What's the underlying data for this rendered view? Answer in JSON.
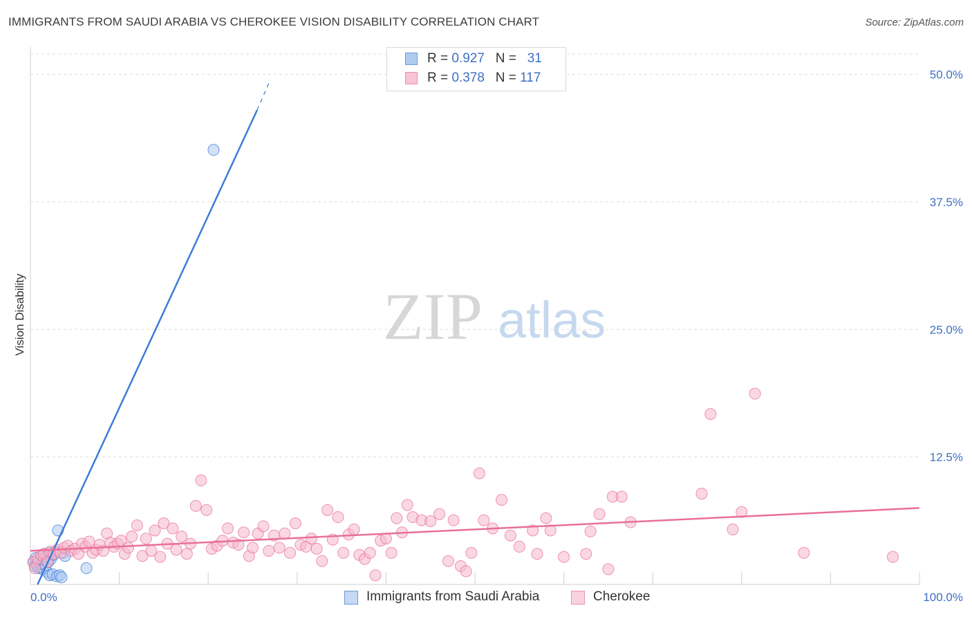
{
  "title": "IMMIGRANTS FROM SAUDI ARABIA VS CHEROKEE VISION DISABILITY CORRELATION CHART",
  "source": "Source: ZipAtlas.com",
  "watermark": {
    "zip": "ZIP",
    "atlas": "atlas"
  },
  "colors": {
    "blue": "#3d7bd6",
    "blue_fill": "#aecbf0",
    "pink": "#e8709a",
    "pink_fill": "#f6b8cb",
    "axis_text": "#3d6fc4",
    "grid": "#dddddd"
  },
  "legend": {
    "r_label": "R = ",
    "n_label": "N = ",
    "series1": {
      "r": "0.927",
      "n": "31"
    },
    "series2": {
      "r": "0.378",
      "n": "117"
    }
  },
  "chart_data": {
    "type": "scatter",
    "title": "IMMIGRANTS FROM SAUDI ARABIA VS CHEROKEE VISION DISABILITY CORRELATION CHART",
    "xlabel": "",
    "ylabel": "Vision Disability",
    "xlim": [
      0,
      100
    ],
    "ylim": [
      0,
      52
    ],
    "x_tick_labels": [
      {
        "value": 0,
        "label": "0.0%"
      },
      {
        "value": 100,
        "label": "100.0%"
      }
    ],
    "y_ticks": [
      {
        "value": 12.5,
        "label": "12.5%"
      },
      {
        "value": 25.0,
        "label": "25.0%"
      },
      {
        "value": 37.5,
        "label": "37.5%"
      },
      {
        "value": 50.0,
        "label": "50.0%"
      }
    ],
    "grid": true,
    "series": [
      {
        "name": "Immigrants from Saudi Arabia",
        "color": "blue",
        "trend": {
          "x0": 0.8,
          "y0": 0.0,
          "x1": 25.5,
          "y1": 46.5,
          "dash_to_x": 27.0,
          "dash_to_y": 49.5
        },
        "points": [
          [
            0.4,
            2.2
          ],
          [
            0.5,
            1.8
          ],
          [
            0.6,
            2.6
          ],
          [
            0.7,
            1.9
          ],
          [
            0.8,
            2.1
          ],
          [
            0.9,
            1.6
          ],
          [
            1.0,
            2.3
          ],
          [
            1.1,
            1.7
          ],
          [
            1.2,
            2.0
          ],
          [
            1.3,
            2.8
          ],
          [
            1.4,
            1.5
          ],
          [
            1.5,
            2.4
          ],
          [
            1.6,
            3.0
          ],
          [
            1.7,
            1.9
          ],
          [
            1.8,
            2.7
          ],
          [
            1.9,
            1.2
          ],
          [
            2.0,
            2.2
          ],
          [
            2.1,
            3.1
          ],
          [
            2.2,
            0.9
          ],
          [
            2.3,
            2.5
          ],
          [
            2.5,
            1.0
          ],
          [
            2.6,
            2.9
          ],
          [
            2.8,
            3.2
          ],
          [
            3.0,
            0.8
          ],
          [
            3.1,
            5.3
          ],
          [
            3.3,
            0.9
          ],
          [
            3.5,
            0.7
          ],
          [
            3.7,
            3.1
          ],
          [
            3.9,
            2.8
          ],
          [
            6.3,
            1.6
          ],
          [
            20.6,
            42.6
          ]
        ]
      },
      {
        "name": "Cherokee",
        "color": "pink",
        "trend": {
          "x0": 0.0,
          "y0": 3.3,
          "x1": 100.0,
          "y1": 7.5
        },
        "points": [
          [
            0.3,
            2.2
          ],
          [
            0.5,
            1.6
          ],
          [
            0.8,
            2.5
          ],
          [
            1.2,
            2.9
          ],
          [
            1.5,
            3.0
          ],
          [
            1.9,
            2.2
          ],
          [
            2.2,
            3.2
          ],
          [
            2.6,
            3.0
          ],
          [
            3.0,
            3.4
          ],
          [
            3.4,
            3.1
          ],
          [
            3.8,
            3.6
          ],
          [
            4.2,
            3.8
          ],
          [
            4.6,
            3.3
          ],
          [
            5.0,
            3.5
          ],
          [
            5.4,
            3.0
          ],
          [
            5.8,
            4.0
          ],
          [
            6.2,
            3.7
          ],
          [
            6.6,
            4.2
          ],
          [
            7.0,
            3.1
          ],
          [
            7.4,
            3.4
          ],
          [
            7.8,
            3.9
          ],
          [
            8.2,
            3.3
          ],
          [
            8.6,
            5.0
          ],
          [
            9.0,
            4.1
          ],
          [
            9.4,
            3.7
          ],
          [
            9.8,
            4.0
          ],
          [
            10.2,
            4.3
          ],
          [
            10.6,
            3.0
          ],
          [
            11.0,
            3.6
          ],
          [
            11.4,
            4.7
          ],
          [
            12.0,
            5.8
          ],
          [
            12.6,
            2.8
          ],
          [
            13.0,
            4.5
          ],
          [
            13.6,
            3.3
          ],
          [
            14.0,
            5.3
          ],
          [
            14.6,
            2.7
          ],
          [
            15.0,
            6.0
          ],
          [
            15.4,
            4.0
          ],
          [
            16.0,
            5.5
          ],
          [
            16.4,
            3.4
          ],
          [
            17.0,
            4.7
          ],
          [
            17.6,
            3.0
          ],
          [
            18.0,
            4.0
          ],
          [
            18.6,
            7.7
          ],
          [
            19.2,
            10.2
          ],
          [
            19.8,
            7.3
          ],
          [
            20.4,
            3.5
          ],
          [
            21.0,
            3.8
          ],
          [
            21.6,
            4.3
          ],
          [
            22.2,
            5.5
          ],
          [
            22.8,
            4.1
          ],
          [
            23.4,
            3.9
          ],
          [
            24.0,
            5.1
          ],
          [
            24.6,
            2.8
          ],
          [
            25.0,
            3.6
          ],
          [
            25.6,
            5.0
          ],
          [
            26.2,
            5.7
          ],
          [
            26.8,
            3.3
          ],
          [
            27.4,
            4.8
          ],
          [
            28.0,
            3.6
          ],
          [
            28.6,
            5.0
          ],
          [
            29.2,
            3.1
          ],
          [
            29.8,
            6.0
          ],
          [
            30.4,
            3.9
          ],
          [
            31.0,
            3.7
          ],
          [
            31.6,
            4.5
          ],
          [
            32.2,
            3.5
          ],
          [
            32.8,
            2.3
          ],
          [
            33.4,
            7.3
          ],
          [
            34.0,
            4.4
          ],
          [
            34.6,
            6.6
          ],
          [
            35.2,
            3.1
          ],
          [
            35.8,
            4.9
          ],
          [
            36.4,
            5.4
          ],
          [
            37.0,
            2.9
          ],
          [
            37.6,
            2.5
          ],
          [
            38.2,
            3.1
          ],
          [
            38.8,
            0.9
          ],
          [
            39.4,
            4.3
          ],
          [
            40.0,
            4.5
          ],
          [
            40.6,
            3.1
          ],
          [
            41.2,
            6.5
          ],
          [
            41.8,
            5.1
          ],
          [
            42.4,
            7.8
          ],
          [
            43.0,
            6.6
          ],
          [
            44.0,
            6.3
          ],
          [
            45.0,
            6.2
          ],
          [
            46.0,
            6.9
          ],
          [
            47.0,
            2.3
          ],
          [
            47.6,
            6.3
          ],
          [
            48.4,
            1.8
          ],
          [
            49.0,
            1.3
          ],
          [
            49.6,
            3.1
          ],
          [
            50.5,
            10.9
          ],
          [
            51.0,
            6.3
          ],
          [
            52.0,
            5.5
          ],
          [
            53.0,
            8.3
          ],
          [
            54.0,
            4.8
          ],
          [
            55.0,
            3.7
          ],
          [
            56.5,
            5.3
          ],
          [
            57.0,
            3.0
          ],
          [
            58.0,
            6.5
          ],
          [
            58.5,
            5.3
          ],
          [
            60.0,
            2.7
          ],
          [
            62.5,
            3.0
          ],
          [
            63.0,
            5.2
          ],
          [
            64.0,
            6.9
          ],
          [
            65.0,
            1.5
          ],
          [
            65.5,
            8.6
          ],
          [
            66.5,
            8.6
          ],
          [
            67.5,
            6.1
          ],
          [
            75.5,
            8.9
          ],
          [
            76.5,
            16.7
          ],
          [
            79.0,
            5.4
          ],
          [
            80.0,
            7.1
          ],
          [
            81.5,
            18.7
          ],
          [
            87.0,
            3.1
          ],
          [
            97.0,
            2.7
          ]
        ]
      }
    ]
  }
}
